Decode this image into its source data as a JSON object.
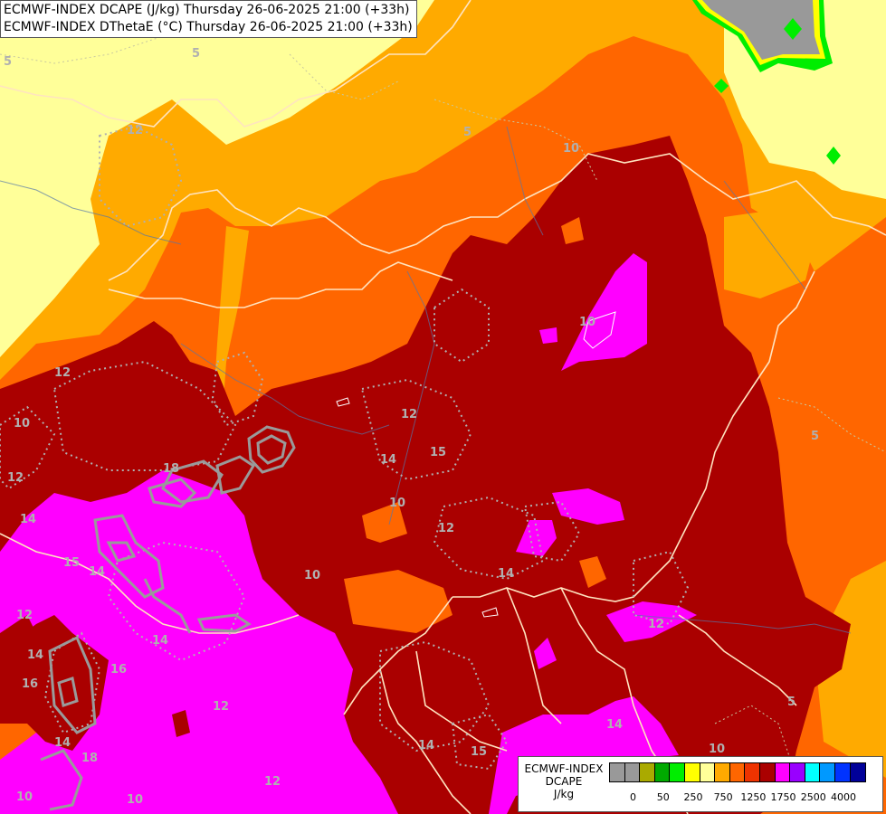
{
  "titles": {
    "line1": "ECMWF-INDEX DCAPE (J/kg) Thursday 26-06-2025 21:00 (+33h)",
    "line2": "ECMWF-INDEX DThetaE (°C) Thursday 26-06-2025 21:00 (+33h)"
  },
  "legend": {
    "title_line1": "ECMWF-INDEX",
    "title_line2": "DCAPE",
    "units": "J/kg",
    "colors": [
      "#999999",
      "#999999",
      "#aaaa00",
      "#00aa00",
      "#00ee00",
      "#ffff00",
      "#ffff99",
      "#ffaa00",
      "#ff6600",
      "#ee3300",
      "#aa0000",
      "#ff00ff",
      "#9900ff",
      "#00ffff",
      "#0099ff",
      "#0033ff",
      "#000099"
    ],
    "ticks": [
      "0",
      "50",
      "250",
      "750",
      "1250",
      "1750",
      "2500",
      "4000"
    ]
  },
  "contour_labels": [
    "5",
    "5",
    "5",
    "5",
    "10",
    "10",
    "10",
    "10",
    "10",
    "10",
    "12",
    "12",
    "12",
    "12",
    "12",
    "12",
    "12",
    "12",
    "12",
    "14",
    "14",
    "14",
    "14",
    "14",
    "14",
    "14",
    "14",
    "14",
    "15",
    "15",
    "15",
    "16",
    "16",
    "18",
    "18",
    "10",
    "10",
    "5"
  ],
  "colors": {
    "pale_yellow": "#ffff99",
    "orange_light": "#ffaa00",
    "orange": "#ff6600",
    "dark_red": "#aa0000",
    "magenta": "#ff00ff",
    "grey": "#999999",
    "green": "#00ee00"
  }
}
